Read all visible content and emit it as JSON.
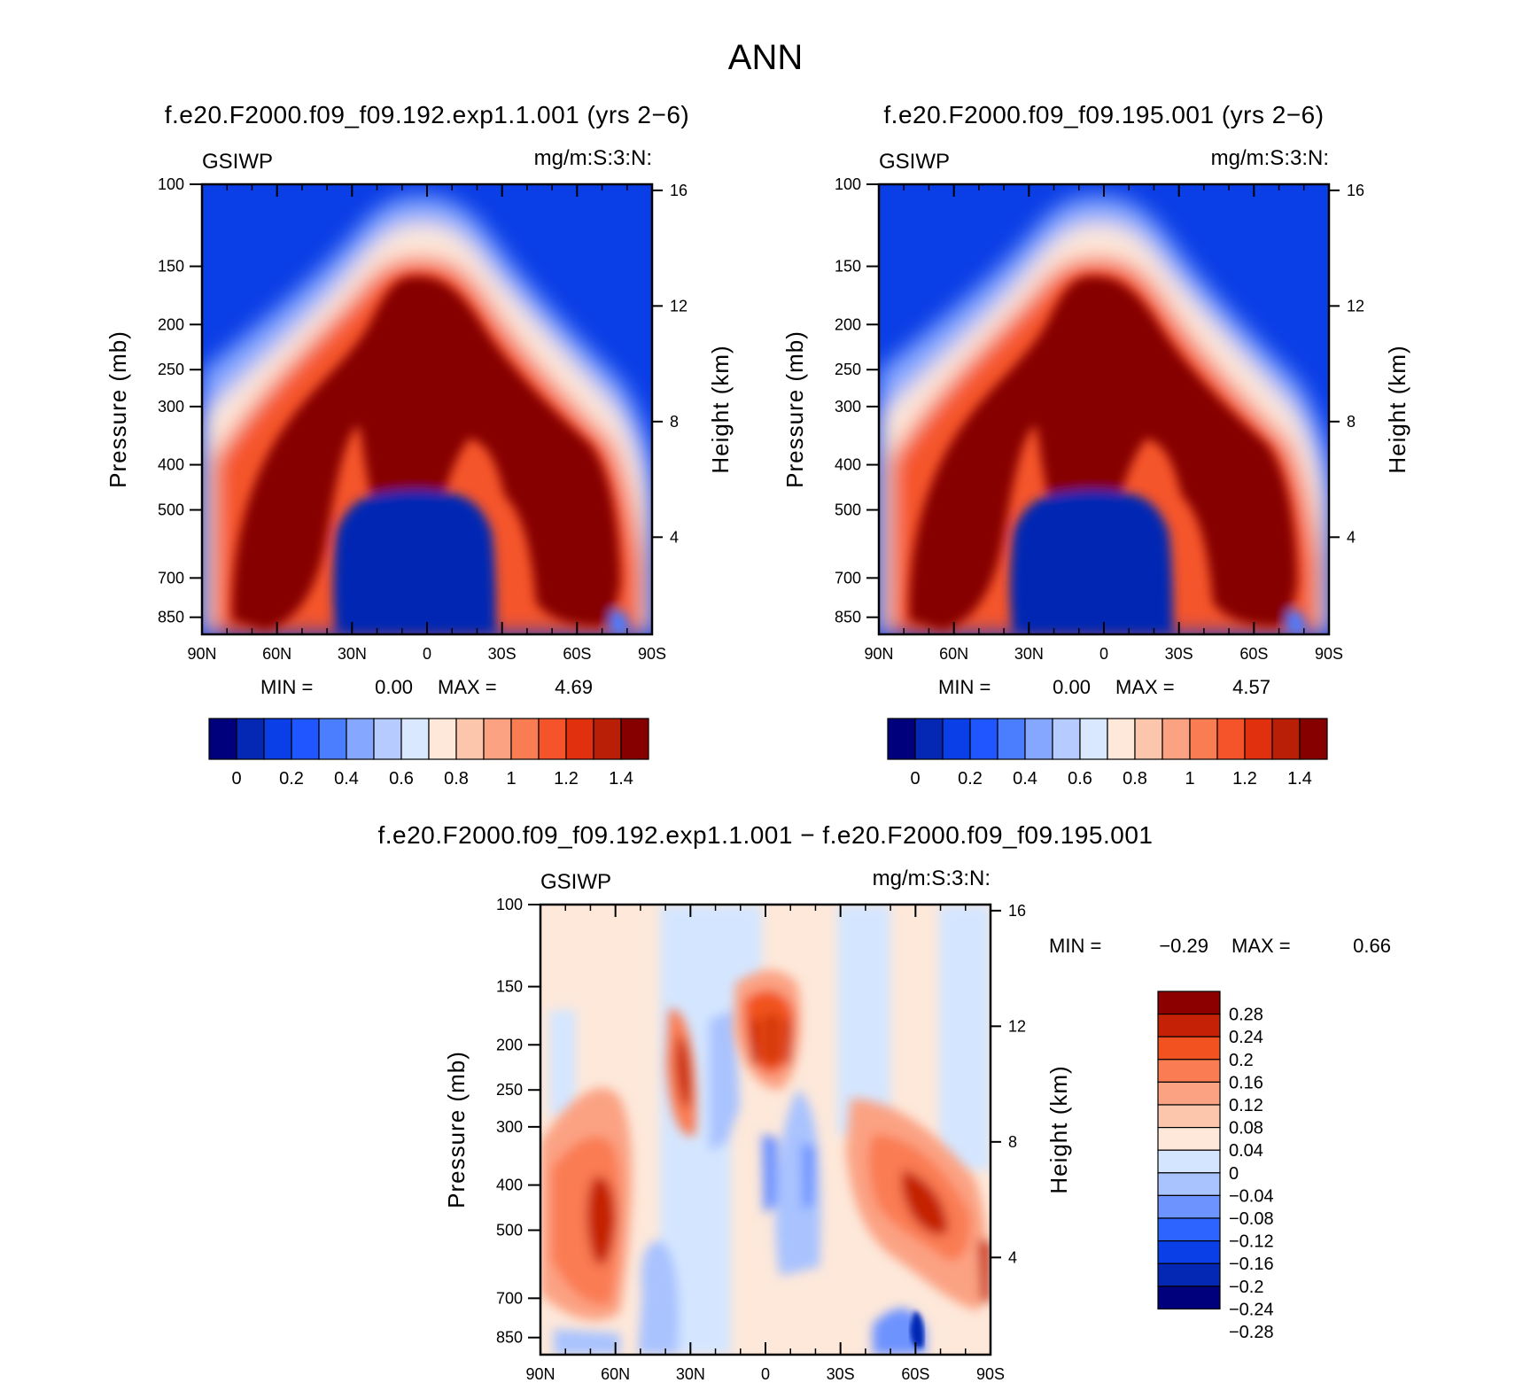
{
  "figure": {
    "title": "ANN"
  },
  "colors": {
    "levels_scale": [
      "#00007d",
      "#0428b3",
      "#0a3ee6",
      "#1f56ff",
      "#4b7dff",
      "#86a7ff",
      "#b6cbff",
      "#d9e8ff",
      "#fde8da",
      "#fcc6ad",
      "#fba283",
      "#fa7c52",
      "#f5542b",
      "#e0300d",
      "#b91f06",
      "#860000"
    ],
    "diff_scale": [
      "#00007d",
      "#0428b3",
      "#0a3ee6",
      "#2d63ff",
      "#6d93ff",
      "#a9c3ff",
      "#d4e6ff",
      "#fde8da",
      "#fcc6ad",
      "#fba283",
      "#fa7c52",
      "#f2521f",
      "#c42106",
      "#8c0000"
    ]
  },
  "chart_data": [
    {
      "type": "heatmap",
      "panel": "top-left",
      "title": "f.e20.F2000.f09_f09.192.exp1.1.001 (yrs 2−6)",
      "left_string": "GSIWP",
      "right_string": "mg/m:S:3:N:",
      "ylabel": "Pressure (mb)",
      "ylabel_right": "Height (km)",
      "x_ticks": [
        "90N",
        "60N",
        "30N",
        "0",
        "30S",
        "60S",
        "90S"
      ],
      "y_ticks": [
        "100",
        "150",
        "200",
        "250",
        "300",
        "400",
        "500",
        "700",
        "850"
      ],
      "y_ticks_right": [
        "16",
        "12",
        "8",
        "4"
      ],
      "ylim": [
        100,
        925
      ],
      "min_label": "MIN =",
      "min": "0.00",
      "max_label": "MAX =",
      "max": "4.69",
      "colorbar_labels": [
        "0",
        "0.2",
        "0.4",
        "0.6",
        "0.8",
        "1",
        "1.2",
        "1.4"
      ]
    },
    {
      "type": "heatmap",
      "panel": "top-right",
      "title": "f.e20.F2000.f09_f09.195.001 (yrs 2−6)",
      "left_string": "GSIWP",
      "right_string": "mg/m:S:3:N:",
      "ylabel": "Pressure (mb)",
      "ylabel_right": "Height (km)",
      "x_ticks": [
        "90N",
        "60N",
        "30N",
        "0",
        "30S",
        "60S",
        "90S"
      ],
      "y_ticks": [
        "100",
        "150",
        "200",
        "250",
        "300",
        "400",
        "500",
        "700",
        "850"
      ],
      "y_ticks_right": [
        "16",
        "12",
        "8",
        "4"
      ],
      "ylim": [
        100,
        925
      ],
      "min_label": "MIN =",
      "min": "0.00",
      "max_label": "MAX =",
      "max": "4.57",
      "colorbar_labels": [
        "0",
        "0.2",
        "0.4",
        "0.6",
        "0.8",
        "1",
        "1.2",
        "1.4"
      ]
    },
    {
      "type": "heatmap",
      "panel": "bottom",
      "title": "f.e20.F2000.f09_f09.192.exp1.1.001 − f.e20.F2000.f09_f09.195.001",
      "left_string": "GSIWP",
      "right_string": "mg/m:S:3:N:",
      "ylabel": "Pressure (mb)",
      "ylabel_right": "Height (km)",
      "x_ticks": [
        "90N",
        "60N",
        "30N",
        "0",
        "30S",
        "60S",
        "90S"
      ],
      "y_ticks": [
        "100",
        "150",
        "200",
        "250",
        "300",
        "400",
        "500",
        "700",
        "850"
      ],
      "y_ticks_right": [
        "16",
        "12",
        "8",
        "4"
      ],
      "ylim": [
        100,
        925
      ],
      "min_label": "MIN =",
      "min": "−0.29",
      "max_label": "MAX =",
      "max": "0.66",
      "colorbar_labels": [
        "0.28",
        "0.24",
        "0.2",
        "0.16",
        "0.12",
        "0.08",
        "0.04",
        "0",
        "−0.04",
        "−0.08",
        "−0.12",
        "−0.16",
        "−0.2",
        "−0.24",
        "−0.28"
      ]
    }
  ]
}
